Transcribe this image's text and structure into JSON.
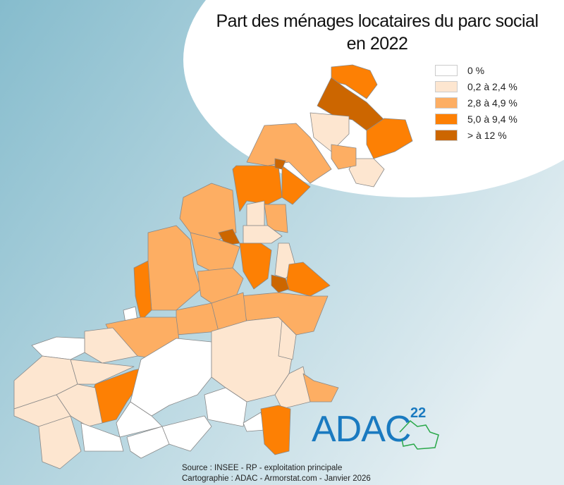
{
  "title_line1": "Part des ménages locataires du parc social",
  "title_line2": "en 2022",
  "legend": [
    {
      "label": "0 %",
      "color": "#ffffff"
    },
    {
      "label": "0,2 à 2,4 %",
      "color": "#fde6d0"
    },
    {
      "label": "2,8 à 4,9 %",
      "color": "#fdae63"
    },
    {
      "label": "5,0 à 9,4 %",
      "color": "#fd8004"
    },
    {
      "label": "> à 12 %",
      "color": "#cc6600"
    }
  ],
  "source_line1": "Source : INSEE - RP - exploitation principale",
  "source_line2": "Cartographie : ADAC - Armorstat.com - Janvier 2026",
  "logo": {
    "text": "ADAC",
    "superscript": "22"
  },
  "colors": {
    "background_left": "#86bccd",
    "background_right": "#e3eef2",
    "border": "#888888",
    "logo_blue": "#1a7ac0",
    "logo_green": "#2aa84a"
  }
}
